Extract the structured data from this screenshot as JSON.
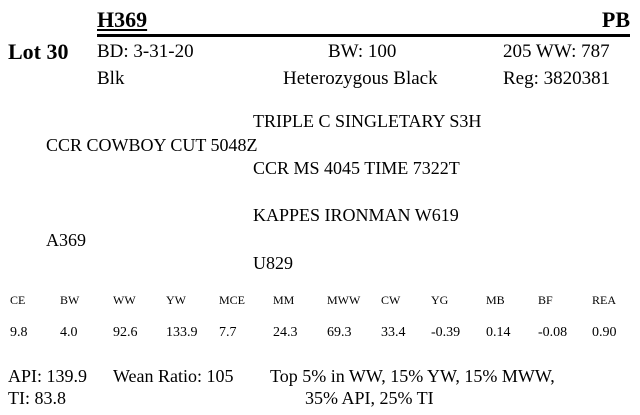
{
  "header": {
    "lot": "Lot 30",
    "id": "H369",
    "breed": "PB",
    "birth_date": "BD: 3-31-20",
    "birth_weight": "BW: 100",
    "weaning_weight": "205 WW: 787",
    "color": "Blk",
    "genotype": "Heterozygous Black",
    "registration": "Reg: 3820381"
  },
  "pedigree": {
    "sire": "CCR COWBOY CUT 5048Z",
    "sire_sire": "TRIPLE C SINGLETARY S3H",
    "sire_dam": "CCR MS 4045 TIME 7322T",
    "dam": "A369",
    "dam_sire": "KAPPES IRONMAN W619",
    "dam_dam": "U829"
  },
  "epds": {
    "headers": [
      "CE",
      "BW",
      "WW",
      "YW",
      "MCE",
      "MM",
      "MWW",
      "CW",
      "YG",
      "MB",
      "BF",
      "REA"
    ],
    "values": [
      "9.8",
      "4.0",
      "92.6",
      "133.9",
      "7.7",
      "24.3",
      "69.3",
      "33.4",
      "-0.39",
      "0.14",
      "-0.08",
      "0.90"
    ]
  },
  "footer": {
    "api": "API: 139.9",
    "wean_ratio": "Wean Ratio: 105",
    "ti": "TI: 83.8",
    "percentiles": [
      "Top 5% in WW,  15% YW,  15% MWW,",
      "35% API,  25% TI"
    ]
  }
}
